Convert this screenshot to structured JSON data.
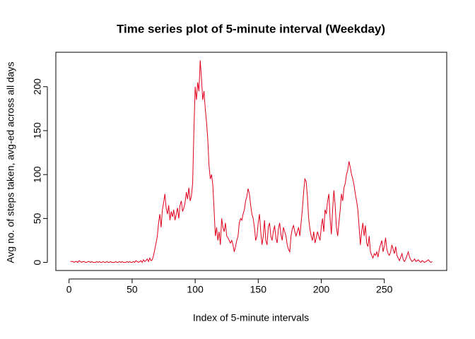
{
  "chart_data": {
    "type": "line",
    "title": "Time series plot of 5-minute interval (Weekday)",
    "x_label": "Index of 5-minute intervals",
    "y_label": "Avg no. of steps taken, avg-ed across all days",
    "color": "#e0001b",
    "x": [
      1,
      2,
      3,
      4,
      5,
      6,
      7,
      8,
      9,
      10,
      11,
      12,
      13,
      14,
      15,
      16,
      17,
      18,
      19,
      20,
      21,
      22,
      23,
      24,
      25,
      26,
      27,
      28,
      29,
      30,
      31,
      32,
      33,
      34,
      35,
      36,
      37,
      38,
      39,
      40,
      41,
      42,
      43,
      44,
      45,
      46,
      47,
      48,
      49,
      50,
      51,
      52,
      53,
      54,
      55,
      56,
      57,
      58,
      59,
      60,
      61,
      62,
      63,
      64,
      65,
      66,
      67,
      68,
      69,
      70,
      71,
      72,
      73,
      74,
      75,
      76,
      77,
      78,
      79,
      80,
      81,
      82,
      83,
      84,
      85,
      86,
      87,
      88,
      89,
      90,
      91,
      92,
      93,
      94,
      95,
      96,
      97,
      98,
      99,
      100,
      101,
      102,
      103,
      104,
      105,
      106,
      107,
      108,
      109,
      110,
      111,
      112,
      113,
      114,
      115,
      116,
      117,
      118,
      119,
      120,
      121,
      122,
      123,
      124,
      125,
      126,
      127,
      128,
      129,
      130,
      131,
      132,
      133,
      134,
      135,
      136,
      137,
      138,
      139,
      140,
      141,
      142,
      143,
      144,
      145,
      146,
      147,
      148,
      149,
      150,
      151,
      152,
      153,
      154,
      155,
      156,
      157,
      158,
      159,
      160,
      161,
      162,
      163,
      164,
      165,
      166,
      167,
      168,
      169,
      170,
      171,
      172,
      173,
      174,
      175,
      176,
      177,
      178,
      179,
      180,
      181,
      182,
      183,
      184,
      185,
      186,
      187,
      188,
      189,
      190,
      191,
      192,
      193,
      194,
      195,
      196,
      197,
      198,
      199,
      200,
      201,
      202,
      203,
      204,
      205,
      206,
      207,
      208,
      209,
      210,
      211,
      212,
      213,
      214,
      215,
      216,
      217,
      218,
      219,
      220,
      221,
      222,
      223,
      224,
      225,
      226,
      227,
      228,
      229,
      230,
      231,
      232,
      233,
      234,
      235,
      236,
      237,
      238,
      239,
      240,
      241,
      242,
      243,
      244,
      245,
      246,
      247,
      248,
      249,
      250,
      251,
      252,
      253,
      254,
      255,
      256,
      257,
      258,
      259,
      260,
      261,
      262,
      263,
      264,
      265,
      266,
      267,
      268,
      269,
      270,
      271,
      272,
      273,
      274,
      275,
      276,
      277,
      278,
      279,
      280,
      281,
      282,
      283,
      284,
      285,
      286,
      287,
      288
    ],
    "values": [
      1,
      1,
      1,
      0,
      1,
      1,
      0,
      2,
      1,
      0,
      1,
      1,
      0,
      0,
      1,
      1,
      0,
      1,
      0,
      0,
      0,
      1,
      0,
      1,
      0,
      0,
      1,
      0,
      0,
      1,
      0,
      0,
      1,
      0,
      0,
      0,
      1,
      0,
      0,
      1,
      0,
      1,
      0,
      0,
      0,
      1,
      0,
      1,
      0,
      0,
      1,
      0,
      2,
      1,
      0,
      1,
      2,
      0,
      3,
      1,
      2,
      4,
      1,
      5,
      2,
      3,
      8,
      15,
      22,
      30,
      45,
      55,
      40,
      60,
      68,
      78,
      62,
      55,
      65,
      48,
      58,
      52,
      60,
      48,
      55,
      62,
      50,
      65,
      70,
      58,
      62,
      68,
      80,
      72,
      85,
      70,
      75,
      90,
      150,
      200,
      185,
      205,
      195,
      230,
      210,
      185,
      195,
      175,
      160,
      140,
      110,
      95,
      100,
      88,
      60,
      30,
      40,
      25,
      35,
      20,
      50,
      40,
      35,
      45,
      30,
      28,
      25,
      22,
      25,
      20,
      12,
      18,
      25,
      30,
      45,
      50,
      48,
      55,
      60,
      70,
      75,
      84,
      78,
      65,
      55,
      50,
      40,
      25,
      30,
      45,
      55,
      35,
      20,
      30,
      48,
      25,
      20,
      40,
      45,
      30,
      25,
      35,
      42,
      28,
      22,
      38,
      45,
      32,
      25,
      40,
      35,
      30,
      20,
      15,
      12,
      30,
      38,
      42,
      35,
      30,
      35,
      40,
      30,
      45,
      60,
      80,
      95,
      92,
      75,
      50,
      38,
      30,
      25,
      35,
      22,
      28,
      35,
      30,
      25,
      40,
      50,
      35,
      60,
      55,
      70,
      78,
      50,
      32,
      60,
      82,
      65,
      40,
      30,
      45,
      60,
      78,
      70,
      85,
      90,
      100,
      105,
      115,
      108,
      100,
      95,
      88,
      78,
      70,
      60,
      40,
      20,
      35,
      45,
      30,
      42,
      22,
      18,
      30,
      12,
      8,
      5,
      10,
      8,
      12,
      6,
      15,
      20,
      25,
      12,
      18,
      28,
      15,
      10,
      8,
      12,
      20,
      15,
      10,
      18,
      8,
      5,
      2,
      6,
      10,
      3,
      1,
      4,
      8,
      12,
      6,
      3,
      1,
      2,
      4,
      1,
      2,
      3,
      1,
      0,
      2,
      1,
      0,
      1,
      2,
      3,
      1,
      0,
      1
    ],
    "xlim": [
      -10.48,
      299.48
    ],
    "ylim": [
      -9.2,
      239.2
    ],
    "xticks": [
      0,
      50,
      100,
      150,
      200,
      250
    ],
    "yticks": [
      0,
      50,
      100,
      150,
      200
    ]
  }
}
